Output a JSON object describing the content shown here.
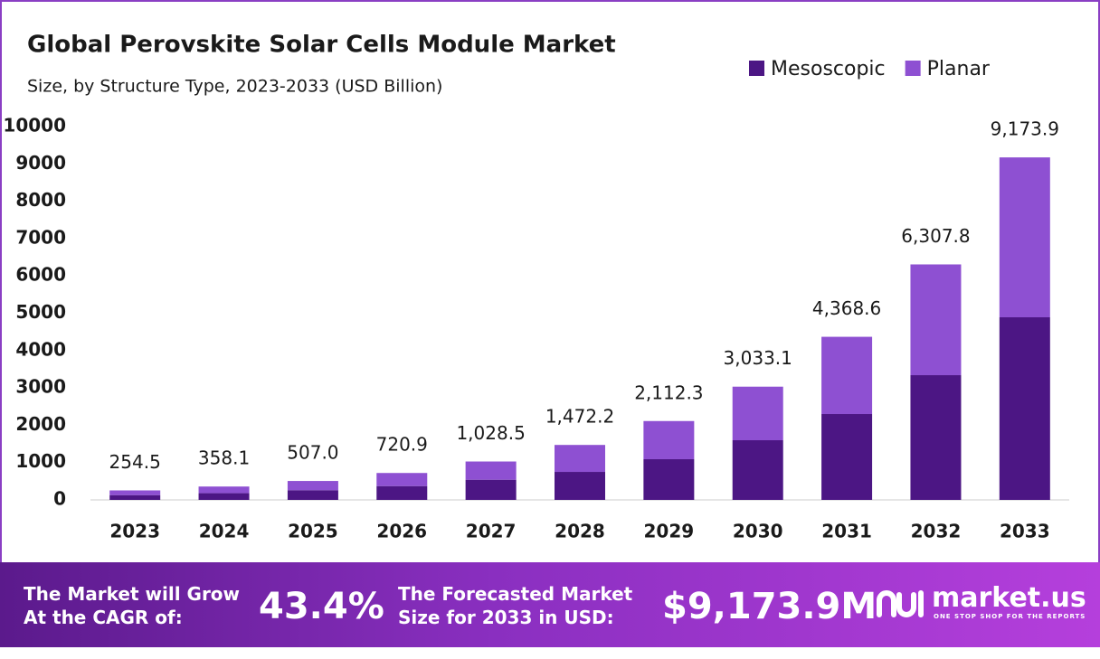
{
  "chart_data": {
    "type": "stacked-bar",
    "title": "Global Perovskite Solar Cells Module Market",
    "subtitle": "Size, by Structure Type, 2023-2033 (USD Billion)",
    "categories": [
      "2023",
      "2024",
      "2025",
      "2026",
      "2027",
      "2028",
      "2029",
      "2030",
      "2031",
      "2032",
      "2033"
    ],
    "series": [
      {
        "name": "Mesoscopic",
        "color": "#4c1684",
        "values": [
          128,
          180,
          260,
          370,
          540,
          750,
          1090,
          1598,
          2300,
          3341,
          4891
        ]
      },
      {
        "name": "Planar",
        "color": "#8e50d2",
        "values": [
          126.5,
          178.1,
          247,
          350.9,
          488.5,
          722.2,
          1022.3,
          1435.1,
          2068.6,
          2966.8,
          4282.9
        ]
      }
    ],
    "totals": {
      "values": [
        254.5,
        358.1,
        507.0,
        720.9,
        1028.5,
        1472.2,
        2112.3,
        3033.1,
        4368.6,
        6307.8,
        9173.9
      ],
      "value_labels": [
        "254.5",
        "358.1",
        "507.0",
        "720.9",
        "1,028.5",
        "1,472.2",
        "2,112.3",
        "3,033.1",
        "4,368.6",
        "6,307.8",
        "9,173.9"
      ]
    },
    "ylim": [
      0,
      10000
    ],
    "yticks": [
      0,
      1000,
      2000,
      3000,
      4000,
      5000,
      6000,
      7000,
      8000,
      9000,
      10000
    ],
    "grid": false,
    "legend": "top-right"
  },
  "footer": {
    "cagr_line1": "The Market will Grow",
    "cagr_line2": "At the CAGR of:",
    "cagr": "43.4%",
    "forecast_line1": "The Forecasted Market",
    "forecast_line2": "Size for 2033 in USD:",
    "forecast": "$9,173.9M",
    "brand": "market.us",
    "tagline": "ONE STOP SHOP FOR THE REPORTS"
  }
}
